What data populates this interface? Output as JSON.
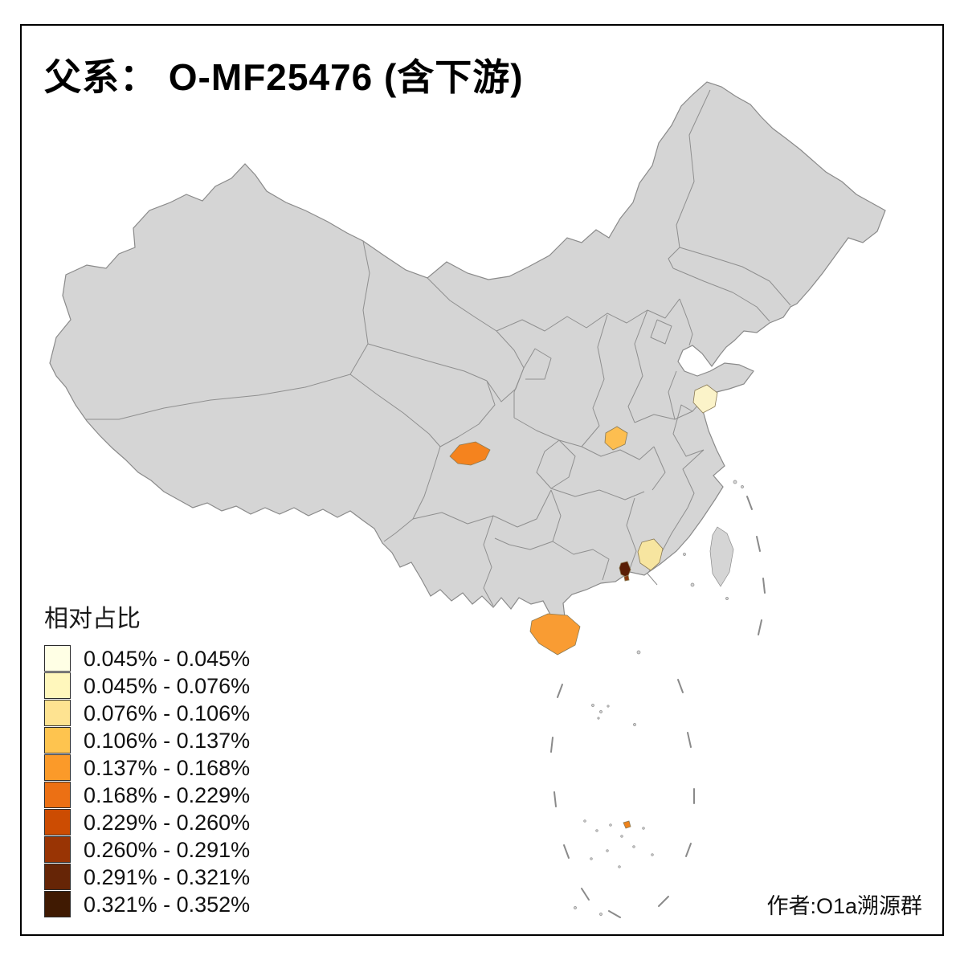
{
  "title": "父系： O-MF25476 (含下游)",
  "legend": {
    "title": "相对占比",
    "items": [
      {
        "label": "0.045% - 0.045%",
        "color": "#FFFFE5"
      },
      {
        "label": "0.045% - 0.076%",
        "color": "#FFF7BC"
      },
      {
        "label": "0.076% - 0.106%",
        "color": "#FEE391"
      },
      {
        "label": "0.106% - 0.137%",
        "color": "#FEC44F"
      },
      {
        "label": "0.137% - 0.168%",
        "color": "#FB9A29"
      },
      {
        "label": "0.168% - 0.229%",
        "color": "#EC7014"
      },
      {
        "label": "0.229% - 0.260%",
        "color": "#CC4C02"
      },
      {
        "label": "0.260% - 0.291%",
        "color": "#993404"
      },
      {
        "label": "0.291% - 0.321%",
        "color": "#662506"
      },
      {
        "label": "0.321% - 0.352%",
        "color": "#401A02"
      }
    ]
  },
  "credit": "作者:O1a溯源群",
  "map": {
    "background": "#FFFFFF",
    "base_fill": "#D5D5D5",
    "border_color": "#8A8A8A",
    "frame_color": "#000000",
    "regions": [
      {
        "name": "sichuan-highlight",
        "color": "#F5831E"
      },
      {
        "name": "central-china-highlight",
        "color": "#FDBE50"
      },
      {
        "name": "jiangsu-highlight",
        "color": "#FBF3C9"
      },
      {
        "name": "guangdong-highlight",
        "color": "#F7E5A0"
      },
      {
        "name": "pearl-river-delta-highlight",
        "color": "#5A1E06"
      },
      {
        "name": "pearl-river-delta-highlight-2",
        "color": "#8A3A10"
      },
      {
        "name": "hainan-highlight",
        "color": "#F99C33"
      },
      {
        "name": "south-china-sea-islet-highlight",
        "color": "#EE821B"
      }
    ]
  }
}
